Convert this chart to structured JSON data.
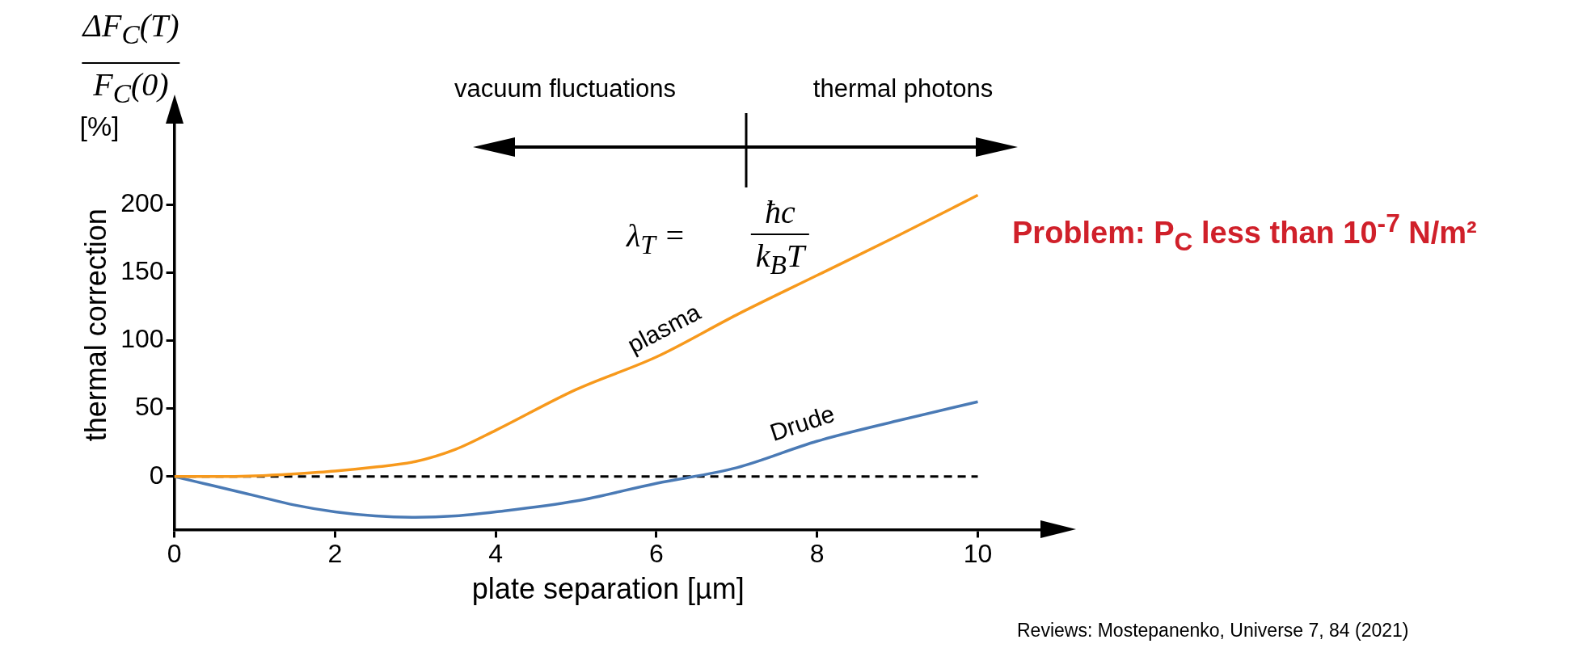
{
  "chart_data": {
    "type": "line",
    "xlabel": "plate separation [µm]",
    "ylabel": "thermal correction",
    "x": [
      0,
      0.5,
      1,
      1.5,
      2,
      2.5,
      3,
      3.5,
      4,
      5,
      6,
      7,
      8,
      9,
      10
    ],
    "series": [
      {
        "name": "plasma",
        "color": "#f7991c",
        "values": [
          0,
          0,
          0.5,
          2,
          4,
          7,
          11,
          20,
          34,
          64,
          88,
          119,
          148,
          177,
          207
        ]
      },
      {
        "name": "Drude",
        "color": "#4a7ab5",
        "values": [
          0,
          -7,
          -14,
          -21,
          -26,
          -29,
          -30,
          -29,
          -26,
          -18,
          -5,
          6.5,
          26,
          41,
          55
        ]
      }
    ],
    "xlim": [
      0,
      10.8
    ],
    "ylim": [
      -39,
      262
    ],
    "xticks": [
      0,
      2,
      4,
      6,
      8,
      10
    ],
    "yticks": [
      0,
      50,
      100,
      150,
      200
    ],
    "grid": false,
    "legend": false,
    "marker": "none",
    "line_style": "solid",
    "ref_lines": [
      {
        "axis": "y",
        "value": 0,
        "color": "#000000",
        "line_style": "dashed"
      }
    ],
    "annotations": [
      "vacuum fluctuations",
      "thermal photons",
      "λ$_{T}$ =",
      "ħc",
      "k$_{B}$T",
      "ΔF$_{C}$(T)",
      "F$_{C}$(0)",
      "[%]",
      "Problem: P$_{C}$ less than 10$^{-7}$ N/m²",
      "Reviews: Mostepanenko, Universe 7, 84 (2021)"
    ]
  }
}
